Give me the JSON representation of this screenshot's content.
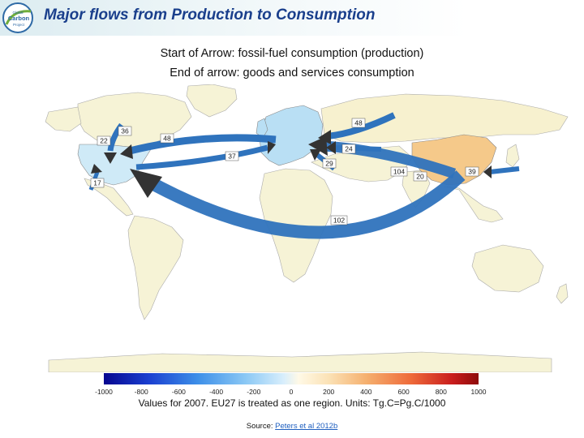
{
  "header": {
    "title": "Major flows from Production to Consumption",
    "logo_text": [
      "Global",
      "Carbon",
      "Project"
    ]
  },
  "subtitle": {
    "line1": "Start of Arrow: fossil-fuel consumption (production)",
    "line2": "End of arrow: goods and services consumption"
  },
  "map": {
    "colors": {
      "ocean": "#ffffff",
      "land_default": "#f6f3d6",
      "usa": "#cfeaf7",
      "europe": "#b9dff4",
      "china": "#f5c98a",
      "russia": "#f7f1cf",
      "arrow": "#2f73bd",
      "arrow_head": "#333333"
    },
    "flows": [
      {
        "label": "36"
      },
      {
        "label": "22"
      },
      {
        "label": "48"
      },
      {
        "label": "17"
      },
      {
        "label": "37"
      },
      {
        "label": "48"
      },
      {
        "label": "24"
      },
      {
        "label": "29"
      },
      {
        "label": "104"
      },
      {
        "label": "20"
      },
      {
        "label": "39"
      },
      {
        "label": "102"
      }
    ]
  },
  "legend": {
    "ticks": [
      "-1000",
      "-800",
      "-600",
      "-400",
      "-200",
      "0",
      "200",
      "400",
      "600",
      "800",
      "1000"
    ],
    "range": [
      -1000,
      1000
    ]
  },
  "footer": {
    "note": "Values for 2007. EU27 is treated as one region. Units: Tg.C=Pg.C/1000",
    "source_prefix": "Source: ",
    "source_link": "Peters et al 2012b"
  }
}
